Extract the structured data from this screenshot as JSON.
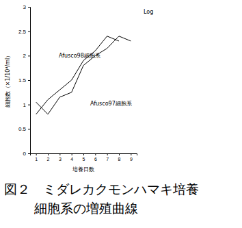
{
  "chart_data": {
    "type": "line",
    "title": "図２　ミダレカクモンハマキ培養細胞系の増殖曲線",
    "xlabel": "培養日数",
    "ylabel": "細胞数（×1/10⁴/ml）",
    "annotations": [
      "Log"
    ],
    "x": [
      1,
      2,
      3,
      4,
      5,
      6,
      7,
      8,
      9
    ],
    "xlim": [
      0.5,
      9.5
    ],
    "xticks": [
      1,
      2,
      3,
      4,
      5,
      6,
      7,
      8,
      9
    ],
    "ylim": [
      0,
      3
    ],
    "yticks": [
      0,
      0.5,
      1,
      1.5,
      2,
      2.5,
      3
    ],
    "grid": false,
    "series": [
      {
        "name": "Afusco98細胞系",
        "color": "#000000",
        "line_style": "solid",
        "values": [
          0.8,
          1.1,
          1.3,
          1.5,
          1.9,
          2.1,
          2.4,
          2.3,
          null
        ]
      },
      {
        "name": "Afusco97細胞系",
        "color": "#000000",
        "line_style": "solid",
        "values": [
          1.05,
          0.8,
          1.15,
          1.25,
          1.8,
          2.0,
          2.15,
          2.4,
          2.3
        ]
      }
    ]
  }
}
